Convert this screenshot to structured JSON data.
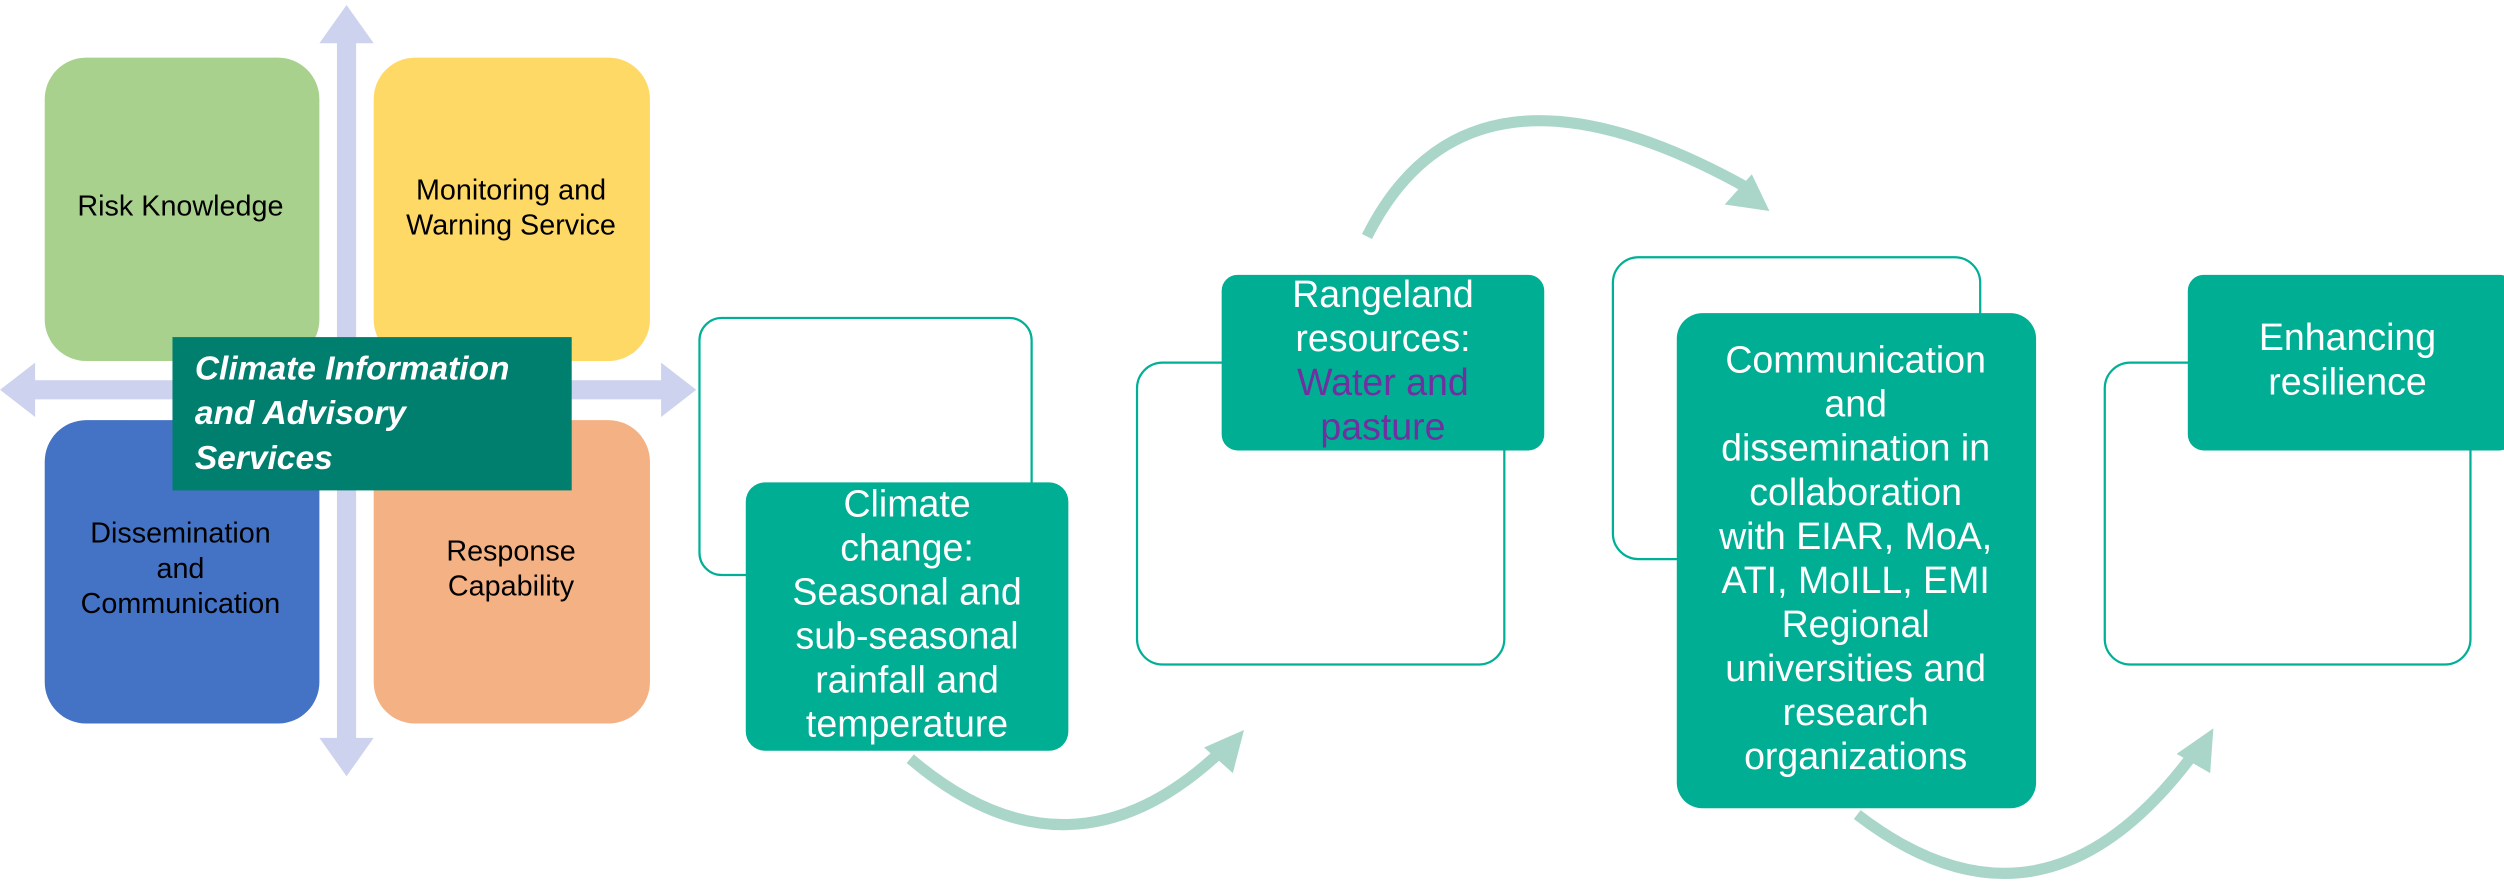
{
  "quadrants": [
    {
      "lines": [
        "Risk Knowledge"
      ]
    },
    {
      "lines": [
        "Monitoring and",
        "Warning Service"
      ]
    },
    {
      "lines": [
        "Dissemination",
        "and",
        "Communication"
      ]
    },
    {
      "lines": [
        "Response",
        "Capability"
      ]
    }
  ],
  "center": {
    "lines": [
      "Climate Information",
      "and Advisory",
      "Services"
    ]
  },
  "steps": [
    {
      "lines": [
        "Climate",
        "change:",
        "Seasonal and",
        "sub-seasonal",
        "rainfall and",
        "temperature"
      ]
    },
    {
      "lines": [
        "Rangeland",
        "resources:"
      ],
      "highlight_lines": [
        "Water and",
        "pasture"
      ]
    },
    {
      "lines": [
        "Communication",
        "and",
        "dissemination in",
        "collaboration",
        "with EIAR, MoA,",
        "ATI, MoILL, EMI",
        "Regional",
        "universities and",
        "research",
        "organizations"
      ]
    },
    {
      "lines": [
        "Enhancing",
        "resilience"
      ]
    }
  ]
}
